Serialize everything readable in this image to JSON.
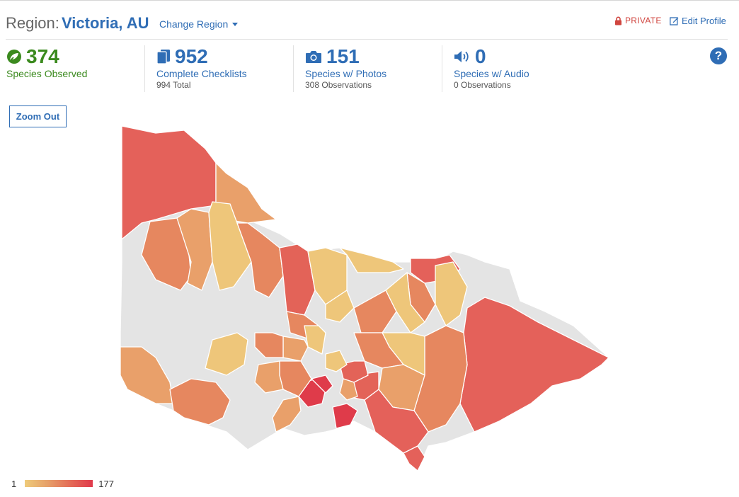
{
  "header": {
    "region_prefix": "Region:",
    "region_name": "Victoria, AU",
    "change_region_label": "Change Region",
    "private_label": "PRIVATE",
    "edit_profile_label": "Edit Profile"
  },
  "stats": [
    {
      "number": "374",
      "label": "Species Observed",
      "sub": "",
      "icon": "leaf-icon",
      "color": "#3b8a1e"
    },
    {
      "number": "952",
      "label": "Complete Checklists",
      "sub": "994 Total",
      "icon": "checklist-icon",
      "color": "#2f6db5"
    },
    {
      "number": "151",
      "label": "Species w/ Photos",
      "sub": "308 Observations",
      "icon": "camera-icon",
      "color": "#2f6db5"
    },
    {
      "number": "0",
      "label": "Species w/ Audio",
      "sub": "0 Observations",
      "icon": "speaker-icon",
      "color": "#2f6db5"
    }
  ],
  "zoom_out_label": "Zoom Out",
  "legend": {
    "min": "1",
    "max": "177",
    "colors": [
      "#eecb7a",
      "#e6a069",
      "#e46c57",
      "#e03a4b"
    ]
  },
  "map": {
    "colors": {
      "none": "#e4e4e4",
      "low": "#eec67a",
      "mid_low": "#e9a06a",
      "mid": "#e6875f",
      "high": "#e36358",
      "max": "#df3b4a"
    }
  }
}
